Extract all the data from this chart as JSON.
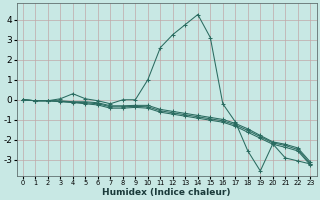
{
  "xlabel": "Humidex (Indice chaleur)",
  "bg_color": "#c8e8e4",
  "grid_color": "#c0a8a8",
  "line_color": "#2a6b60",
  "xlim": [
    -0.5,
    23.5
  ],
  "ylim": [
    -3.8,
    4.8
  ],
  "xticks": [
    0,
    1,
    2,
    3,
    4,
    5,
    6,
    7,
    8,
    9,
    10,
    11,
    12,
    13,
    14,
    15,
    16,
    17,
    18,
    19,
    20,
    21,
    22,
    23
  ],
  "yticks": [
    -3,
    -2,
    -1,
    0,
    1,
    2,
    3,
    4
  ],
  "curves": [
    [
      0.0,
      -0.05,
      -0.05,
      0.05,
      0.3,
      0.05,
      -0.05,
      -0.2,
      0.0,
      0.0,
      1.0,
      2.6,
      3.25,
      3.75,
      4.25,
      3.1,
      -0.2,
      -1.1,
      -2.55,
      -3.55,
      -2.2,
      -2.9,
      -3.05,
      -3.2
    ],
    [
      0.0,
      -0.05,
      -0.05,
      -0.05,
      -0.1,
      -0.1,
      -0.15,
      -0.3,
      -0.3,
      -0.28,
      -0.28,
      -0.48,
      -0.58,
      -0.68,
      -0.78,
      -0.88,
      -0.98,
      -1.18,
      -1.45,
      -1.78,
      -2.1,
      -2.22,
      -2.4,
      -3.1
    ],
    [
      0.0,
      -0.05,
      -0.05,
      -0.08,
      -0.12,
      -0.15,
      -0.2,
      -0.35,
      -0.35,
      -0.33,
      -0.35,
      -0.55,
      -0.65,
      -0.75,
      -0.85,
      -0.95,
      -1.05,
      -1.25,
      -1.53,
      -1.84,
      -2.15,
      -2.28,
      -2.48,
      -3.18
    ],
    [
      0.0,
      -0.05,
      -0.05,
      -0.1,
      -0.14,
      -0.2,
      -0.26,
      -0.42,
      -0.42,
      -0.38,
      -0.42,
      -0.62,
      -0.72,
      -0.82,
      -0.92,
      -1.02,
      -1.12,
      -1.32,
      -1.62,
      -1.92,
      -2.22,
      -2.37,
      -2.55,
      -3.25
    ]
  ]
}
